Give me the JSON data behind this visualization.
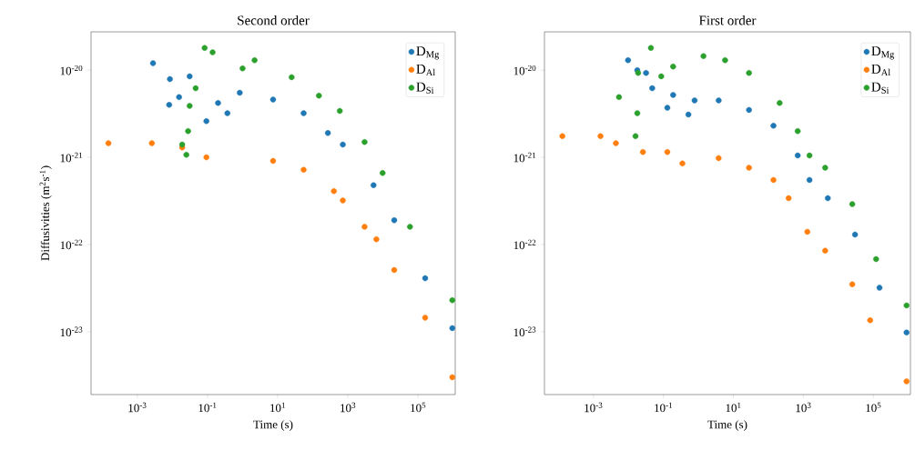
{
  "chart_data": [
    {
      "type": "scatter",
      "title": "Second order",
      "xlabel": "Time (s)",
      "ylabel": "Diffusivities (m$^{2}$s$^{-1}$)",
      "log": "xy",
      "legend": "top right",
      "marker": "circle",
      "xlim": [
        4.8e-05,
        1150000.0
      ],
      "ylim": [
        1.9e-24,
        2.75e-20
      ],
      "xticks": [
        {
          "value": 0.001,
          "label": "10$^{-3}$"
        },
        {
          "value": 0.1,
          "label": "10$^{-1}$"
        },
        {
          "value": 10,
          "label": "10$^{1}$"
        },
        {
          "value": 1000,
          "label": "10$^{3}$"
        },
        {
          "value": 100000,
          "label": "10$^{5}$"
        }
      ],
      "yticks": [
        {
          "value": 1e-23,
          "label": "10$^{-23}$"
        },
        {
          "value": 1e-22,
          "label": "10$^{-22}$"
        },
        {
          "value": 1e-21,
          "label": "10$^{-21}$"
        },
        {
          "value": 1e-20,
          "label": "10$^{-20}$"
        }
      ],
      "series": [
        {
          "name": "D$_{Mg}$",
          "color": "#1f77b4",
          "x": [
            0.0028,
            0.0081,
            0.0085,
            0.0155,
            0.031,
            0.093,
            0.2,
            0.37,
            0.83,
            7.4,
            55,
            270,
            720,
            5400,
            21000,
            160000,
            950000
          ],
          "values": [
            1.2e-20,
            4e-21,
            7.9e-21,
            4.9e-21,
            8.5e-21,
            2.6e-21,
            4.2e-21,
            3.2e-21,
            5.5e-21,
            4.6e-21,
            3.2e-21,
            1.9e-21,
            1.4e-21,
            4.8e-22,
            1.9e-22,
            4.1e-23,
            1.1e-23
          ]
        },
        {
          "name": "D$_{Al}$",
          "color": "#ff7f0e",
          "x": [
            0.00015,
            0.0026,
            0.019,
            0.093,
            7.4,
            55,
            400,
            720,
            3000,
            6500,
            21000,
            160000,
            950000
          ],
          "values": [
            1.45e-21,
            1.45e-21,
            1.3e-21,
            1e-21,
            9.1e-22,
            7.2e-22,
            4.1e-22,
            3.2e-22,
            1.6e-22,
            1.15e-22,
            5.1e-23,
            1.45e-23,
            3e-24
          ]
        },
        {
          "name": "D$_{Si}$",
          "color": "#2ca02c",
          "x": [
            0.019,
            0.025,
            0.028,
            0.031,
            0.046,
            0.083,
            0.14,
            1.0,
            2.2,
            25,
            150,
            590,
            3000,
            9800,
            59000,
            950000
          ],
          "values": [
            1.4e-21,
            1.07e-21,
            2e-21,
            3.9e-21,
            6.2e-21,
            1.8e-20,
            1.6e-20,
            1.05e-20,
            1.3e-20,
            8.3e-21,
            5.1e-21,
            3.4e-21,
            1.5e-21,
            6.6e-22,
            1.6e-22,
            2.3e-23
          ]
        }
      ]
    },
    {
      "type": "scatter",
      "title": "First order",
      "xlabel": "Time (s)",
      "log": "xy",
      "legend": "top right",
      "marker": "circle",
      "xlim": [
        4e-05,
        1150000.0
      ],
      "ylim": [
        1.9e-24,
        2.75e-20
      ],
      "xticks": [
        {
          "value": 0.001,
          "label": "10$^{-3}$"
        },
        {
          "value": 0.1,
          "label": "10$^{-1}$"
        },
        {
          "value": 10,
          "label": "10$^{1}$"
        },
        {
          "value": 1000,
          "label": "10$^{3}$"
        },
        {
          "value": 100000,
          "label": "10$^{5}$"
        }
      ],
      "yticks": [
        {
          "value": 1e-23,
          "label": "10$^{-23}$"
        },
        {
          "value": 1e-22,
          "label": "10$^{-22}$"
        },
        {
          "value": 1e-21,
          "label": "10$^{-21}$"
        },
        {
          "value": 1e-20,
          "label": "10$^{-20}$"
        }
      ],
      "series": [
        {
          "name": "D$_{Mg}$",
          "color": "#1f77b4",
          "x": [
            0.0098,
            0.018,
            0.032,
            0.048,
            0.13,
            0.19,
            0.52,
            0.78,
            3.8,
            28,
            140,
            690,
            1500,
            5000,
            30000,
            150000,
            890000
          ],
          "values": [
            1.3e-20,
            1e-20,
            9.3e-21,
            6.2e-21,
            3.7e-21,
            5.2e-21,
            3.1e-21,
            4.5e-21,
            4.5e-21,
            3.5e-21,
            2.3e-21,
            1.05e-21,
            5.5e-22,
            3.4e-22,
            1.3e-22,
            3.2e-23,
            9.8e-24
          ]
        },
        {
          "name": "D$_{Al}$",
          "color": "#ff7f0e",
          "x": [
            0.00013,
            0.0016,
            0.0044,
            0.026,
            0.13,
            0.35,
            3.8,
            28,
            140,
            380,
            1300,
            4200,
            25000,
            81000,
            890000
          ],
          "values": [
            1.75e-21,
            1.75e-21,
            1.45e-21,
            1.15e-21,
            1.15e-21,
            8.5e-22,
            9.8e-22,
            7.6e-22,
            5.5e-22,
            3.4e-22,
            1.4e-22,
            8.5e-23,
            3.5e-23,
            1.35e-23,
            2.7e-24
          ]
        },
        {
          "name": "D$_{Si}$",
          "color": "#2ca02c",
          "x": [
            0.0054,
            0.016,
            0.018,
            0.019,
            0.044,
            0.087,
            0.19,
            1.4,
            5.8,
            28,
            210,
            690,
            1500,
            4200,
            25000,
            120000,
            890000
          ],
          "values": [
            4.9e-21,
            1.75e-21,
            3.2e-21,
            9.3e-21,
            1.8e-20,
            8.5e-21,
            1.1e-20,
            1.45e-20,
            1.3e-20,
            9.3e-21,
            4.2e-21,
            2e-21,
            1.05e-21,
            7.6e-22,
            2.9e-22,
            6.8e-23,
            2e-23
          ]
        }
      ]
    }
  ]
}
